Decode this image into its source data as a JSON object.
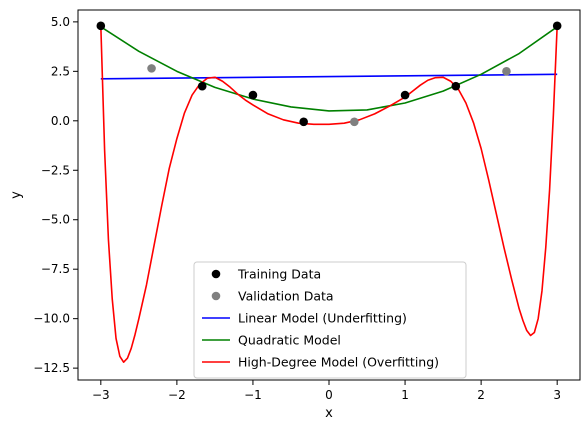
{
  "chart_data": {
    "type": "line",
    "title": "",
    "xlabel": "x",
    "ylabel": "y",
    "xlim": [
      -3.3,
      3.3
    ],
    "ylim": [
      -13.1,
      5.6
    ],
    "xticks": [
      -3,
      -2,
      -1,
      0,
      1,
      2,
      3
    ],
    "xtick_labels": [
      "−3",
      "−2",
      "−1",
      "0",
      "1",
      "2",
      "3"
    ],
    "yticks": [
      5.0,
      2.5,
      0.0,
      -2.5,
      -5.0,
      -7.5,
      -10.0,
      -12.5
    ],
    "ytick_labels": [
      "5.0",
      "2.5",
      "0.0",
      "−2.5",
      "−5.0",
      "−7.5",
      "−10.0",
      "−12.5"
    ],
    "grid": false,
    "legend_position": "lower-center",
    "scatter_series": [
      {
        "name": "Training Data",
        "color": "#000000",
        "x": [
          -3.0,
          -1.667,
          -1.0,
          -0.333,
          1.0,
          1.667,
          3.0
        ],
        "y": [
          4.8,
          1.75,
          1.3,
          -0.05,
          1.3,
          1.75,
          4.8
        ]
      },
      {
        "name": "Validation Data",
        "color": "#808080",
        "x": [
          -2.333,
          0.333,
          2.333
        ],
        "y": [
          2.65,
          -0.05,
          2.5
        ]
      }
    ],
    "line_series": [
      {
        "name": "Linear Model (Underfitting)",
        "color": "#0000ff",
        "x": [
          -3.0,
          3.0
        ],
        "y": [
          2.12,
          2.35
        ]
      },
      {
        "name": "Quadratic Model",
        "color": "#008000",
        "x": [
          -3.0,
          -2.5,
          -2.0,
          -1.5,
          -1.0,
          -0.5,
          0.0,
          0.5,
          1.0,
          1.5,
          2.0,
          2.5,
          3.0
        ],
        "y": [
          4.75,
          3.51,
          2.5,
          1.69,
          1.1,
          0.7,
          0.5,
          0.55,
          0.9,
          1.5,
          2.35,
          3.4,
          4.75
        ]
      },
      {
        "name": "High-Degree Model (Overfitting)",
        "color": "#ff0000",
        "x": [
          -3.0,
          -2.95,
          -2.9,
          -2.85,
          -2.8,
          -2.75,
          -2.7,
          -2.65,
          -2.6,
          -2.55,
          -2.5,
          -2.4,
          -2.3,
          -2.2,
          -2.1,
          -2.0,
          -1.9,
          -1.8,
          -1.7,
          -1.6,
          -1.5,
          -1.4,
          -1.3,
          -1.2,
          -1.1,
          -1.0,
          -0.8,
          -0.6,
          -0.4,
          -0.2,
          0.0,
          0.2,
          0.4,
          0.6,
          0.8,
          1.0,
          1.1,
          1.2,
          1.3,
          1.4,
          1.5,
          1.6,
          1.7,
          1.8,
          1.9,
          2.0,
          2.1,
          2.2,
          2.3,
          2.4,
          2.5,
          2.55,
          2.6,
          2.65,
          2.7,
          2.75,
          2.8,
          2.85,
          2.9,
          2.95,
          3.0
        ],
        "y": [
          4.8,
          -1.5,
          -6.0,
          -9.0,
          -11.0,
          -11.9,
          -12.2,
          -12.0,
          -11.5,
          -10.8,
          -10.0,
          -8.3,
          -6.3,
          -4.3,
          -2.4,
          -0.9,
          0.4,
          1.3,
          1.85,
          2.15,
          2.2,
          2.0,
          1.7,
          1.35,
          1.05,
          0.8,
          0.35,
          0.05,
          -0.12,
          -0.18,
          -0.18,
          -0.12,
          0.05,
          0.35,
          0.75,
          1.2,
          1.5,
          1.8,
          2.05,
          2.18,
          2.2,
          2.0,
          1.6,
          0.9,
          -0.1,
          -1.4,
          -3.0,
          -4.7,
          -6.4,
          -8.0,
          -9.5,
          -10.1,
          -10.6,
          -10.85,
          -10.7,
          -10.0,
          -8.6,
          -6.4,
          -3.5,
          0.3,
          4.8
        ]
      }
    ]
  }
}
